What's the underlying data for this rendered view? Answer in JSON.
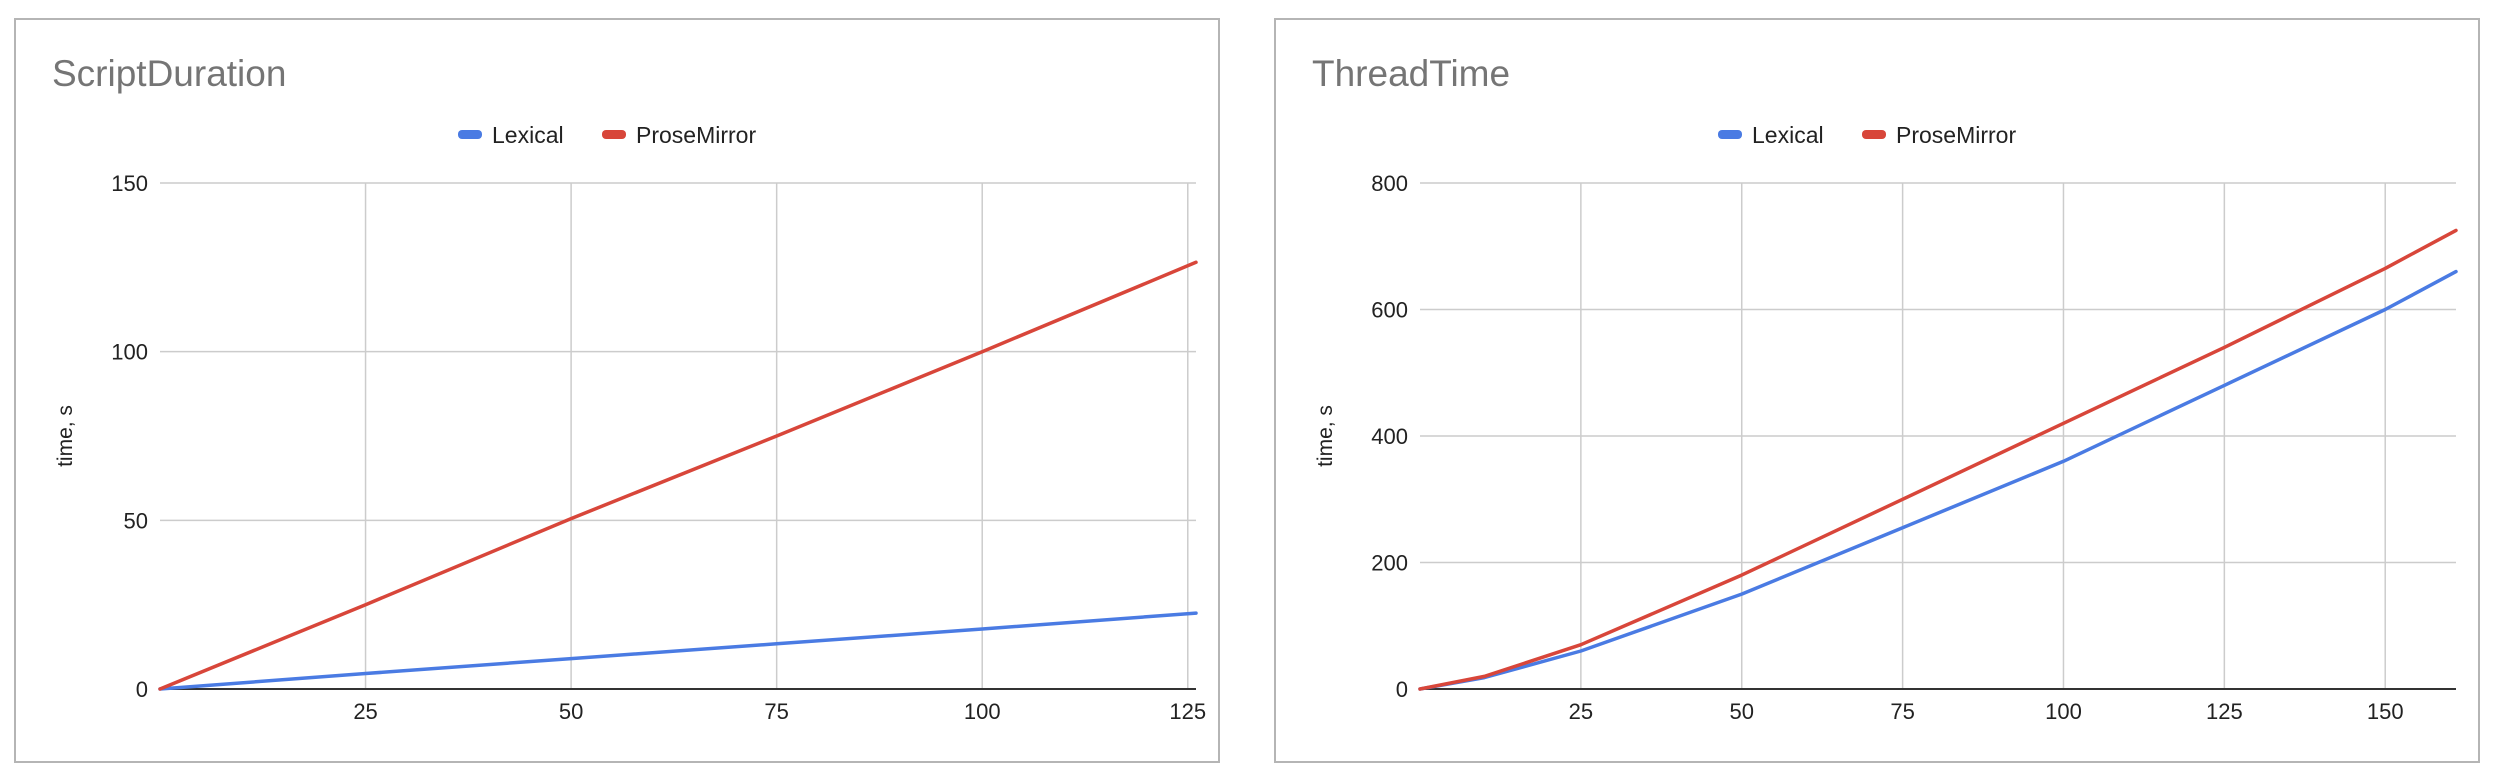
{
  "chart_data": [
    {
      "type": "line",
      "title": "ScriptDuration",
      "xlabel": "",
      "ylabel": "time, s",
      "xlim": [
        0,
        126
      ],
      "ylim": [
        0,
        150
      ],
      "x_ticks": [
        25,
        50,
        75,
        100,
        125
      ],
      "y_ticks": [
        0,
        50,
        100,
        150
      ],
      "grid": true,
      "legend_position": "top",
      "series": [
        {
          "name": "Lexical",
          "color": "#4a7be3",
          "x": [
            0,
            25,
            50,
            75,
            100,
            126
          ],
          "y": [
            0,
            4.6,
            9,
            13.4,
            17.8,
            22.5
          ]
        },
        {
          "name": "ProseMirror",
          "color": "#d8463a",
          "x": [
            0,
            25,
            50,
            75,
            100,
            126
          ],
          "y": [
            0,
            25,
            50.5,
            75,
            100,
            126.5
          ]
        }
      ]
    },
    {
      "type": "line",
      "title": "ThreadTime",
      "xlabel": "",
      "ylabel": "time, s",
      "xlim": [
        0,
        161
      ],
      "ylim": [
        0,
        800
      ],
      "x_ticks": [
        25,
        50,
        75,
        100,
        125,
        150
      ],
      "y_ticks": [
        0,
        200,
        400,
        600,
        800
      ],
      "grid": true,
      "legend_position": "top",
      "series": [
        {
          "name": "Lexical",
          "color": "#4a7be3",
          "x": [
            0,
            10,
            25,
            50,
            75,
            100,
            125,
            150,
            161
          ],
          "y": [
            0,
            18,
            60,
            150,
            255,
            360,
            480,
            600,
            660
          ]
        },
        {
          "name": "ProseMirror",
          "color": "#d8463a",
          "x": [
            0,
            10,
            25,
            50,
            75,
            100,
            125,
            150,
            161
          ],
          "y": [
            0,
            20,
            70,
            180,
            300,
            420,
            540,
            665,
            725
          ]
        }
      ]
    }
  ]
}
